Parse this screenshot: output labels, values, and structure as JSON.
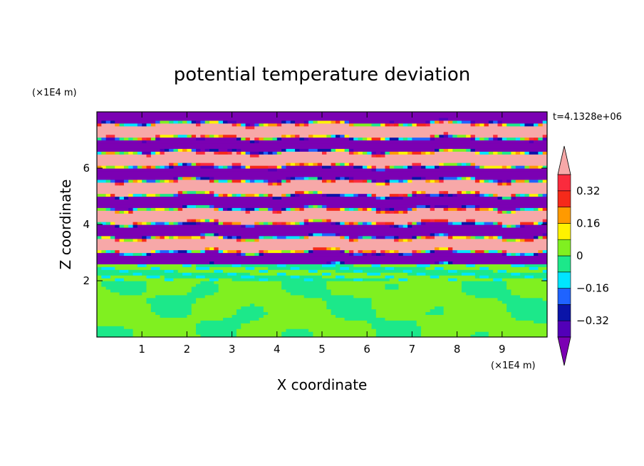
{
  "chart_data": {
    "type": "heatmap",
    "title": "potential temperature deviation",
    "xlabel": "X coordinate",
    "ylabel": "Z coordinate",
    "x_unit": "(×1E4 m)",
    "y_unit": "(×1E4 m)",
    "time_label": "t=4.1328e+06",
    "xlim": [
      0,
      10
    ],
    "ylim": [
      0,
      8
    ],
    "x_ticks": [
      "1",
      "2",
      "3",
      "4",
      "5",
      "6",
      "7",
      "8",
      "9"
    ],
    "y_ticks": [
      "2",
      "4",
      "6"
    ],
    "colorbar": {
      "levels": [
        -0.4,
        -0.32,
        -0.24,
        -0.16,
        -0.08,
        0,
        0.08,
        0.16,
        0.24,
        0.32,
        0.4
      ],
      "tick_labels": [
        "0.32",
        "0.16",
        "0",
        "-0.16",
        "-0.32"
      ],
      "tick_values": [
        0.32,
        0.16,
        0,
        -0.16,
        -0.32
      ],
      "colors": [
        "#7b00b3",
        "#5200b8",
        "#0a14a8",
        "#1f63ff",
        "#00e5ff",
        "#1ce88a",
        "#80f020",
        "#fff200",
        "#ff9a00",
        "#f52a1a",
        "#fa2b3d",
        "#f7a8a8"
      ],
      "extend": "both"
    },
    "regions": [
      {
        "z_range": [
          0,
          2.0
        ],
        "description": "mostly green (0 to 0.08) with teal (-0.08 to 0) blobs"
      },
      {
        "z_range": [
          2.0,
          2.6
        ],
        "description": "teal/green band with cyan streaks"
      },
      {
        "z_range": [
          2.6,
          8.0
        ],
        "description": "alternating pink (>0.4) and purple (<-0.4) layered bands with colored transitions"
      }
    ]
  }
}
